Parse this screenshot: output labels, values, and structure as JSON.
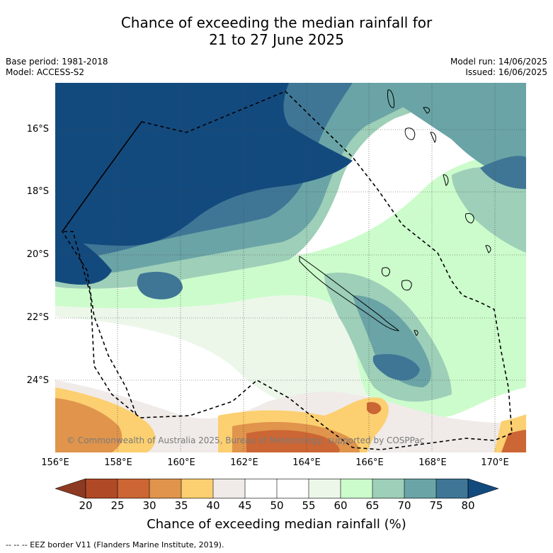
{
  "title_line1": "Chance of exceeding the median rainfall for",
  "title_line2": "21 to 27 June 2025",
  "base_period": "Base period: 1981-2018",
  "model": "Model: ACCESS-S2",
  "model_run": "Model run: 14/06/2025",
  "issued": "Issued: 16/06/2025",
  "copyright": "© Commonwealth of Australia 2025, Bureau of Meteorology, supported by COSPPac",
  "lat_labels": [
    "16°S",
    "18°S",
    "20°S",
    "22°S",
    "24°S"
  ],
  "lon_labels": [
    "156°E",
    "158°E",
    "160°E",
    "162°E",
    "164°E",
    "166°E",
    "168°E",
    "170°E"
  ],
  "colorbar": {
    "ticks": [
      "20",
      "25",
      "30",
      "35",
      "40",
      "45",
      "50",
      "55",
      "60",
      "65",
      "70",
      "75",
      "80"
    ],
    "colors": {
      "under20": "#8c3a22",
      "c20_25": "#b04a26",
      "c25_30": "#cc6634",
      "c30_35": "#e0944c",
      "c35_40": "#fccf70",
      "c40_45": "#f0ebe8",
      "c45_50": "#ffffff",
      "c50_55": "#ffffff",
      "c55_60": "#ecf7ea",
      "c60_65": "#ccfccc",
      "c65_70": "#9ecfb8",
      "c70_75": "#6aa4a6",
      "c75_80": "#3f7696",
      "over80": "#134a7e"
    },
    "label": "Chance of exceeding median rainfall (%)"
  },
  "footnote": "--  --  -- EEZ border V11 (Flanders Marine Institute, 2019)."
}
